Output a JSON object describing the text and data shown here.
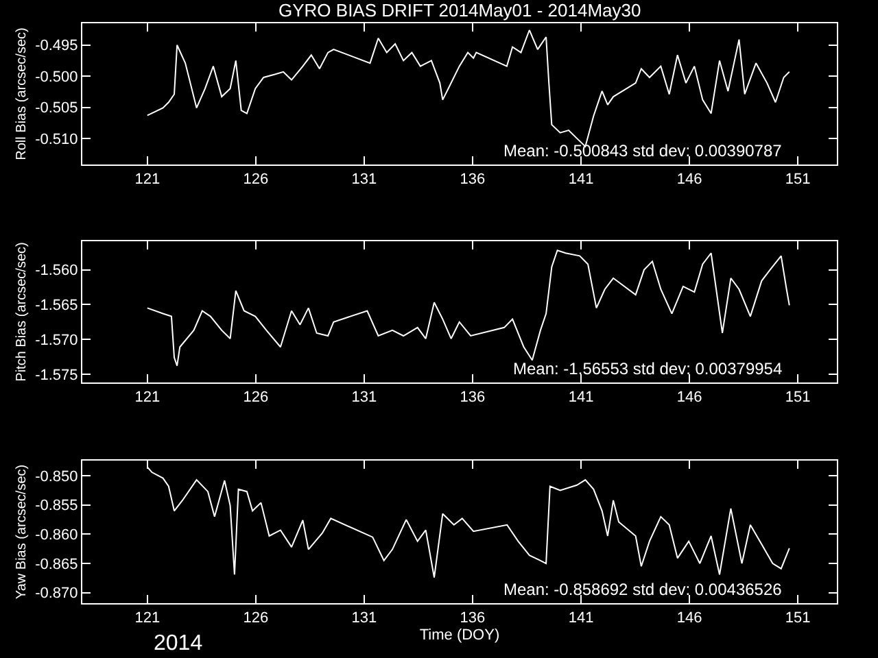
{
  "chart_data": [
    {
      "type": "line",
      "title": "GYRO BIAS DRIFT 2014May01 - 2014May30",
      "ylabel": "Roll Bias (arcsec/sec)",
      "annotations": [
        "Mean: -0.500843 std dev: 0.00390787"
      ],
      "xlim": [
        118,
        152.8
      ],
      "xticks": [
        121,
        126,
        131,
        136,
        141,
        146,
        151
      ],
      "ylim": [
        -0.5142,
        -0.4915
      ],
      "yticks": [
        -0.495,
        {
          "value": -0.5,
          "label": "-0.500"
        },
        -0.505,
        {
          "value": -0.51,
          "label": "-0.510"
        }
      ],
      "series": [
        {
          "color": "#ffffff",
          "x": [
            121.0,
            121.72,
            121.98,
            122.24,
            122.37,
            122.75,
            123.27,
            123.66,
            124.04,
            124.43,
            124.82,
            125.08,
            125.33,
            125.59,
            125.98,
            126.36,
            126.88,
            127.27,
            127.65,
            128.17,
            128.56,
            128.94,
            129.33,
            129.59,
            131.27,
            131.65,
            132.04,
            132.43,
            132.81,
            133.2,
            133.59,
            134.1,
            134.49,
            134.62,
            134.88,
            135.39,
            135.78,
            136.04,
            136.17,
            137.58,
            137.84,
            138.23,
            138.62,
            139.0,
            139.39,
            139.52,
            139.65,
            140.04,
            140.43,
            140.81,
            141.2,
            141.58,
            141.97,
            142.23,
            142.49,
            143.52,
            143.78,
            144.16,
            144.68,
            145.07,
            145.45,
            145.84,
            146.23,
            146.61,
            147.0,
            147.39,
            147.78,
            148.29,
            148.55,
            149.07,
            149.58,
            149.97,
            150.35,
            150.61
          ],
          "values": [
            -0.5063,
            -0.5051,
            -0.5042,
            -0.5029,
            -0.495,
            -0.4979,
            -0.5051,
            -0.502,
            -0.4984,
            -0.5033,
            -0.502,
            -0.4975,
            -0.5055,
            -0.506,
            -0.502,
            -0.5002,
            -0.4997,
            -0.4993,
            -0.5006,
            -0.4984,
            -0.4966,
            -0.4988,
            -0.4962,
            -0.4957,
            -0.4979,
            -0.4939,
            -0.4962,
            -0.4948,
            -0.4975,
            -0.4962,
            -0.4984,
            -0.4975,
            -0.5011,
            -0.5038,
            -0.502,
            -0.4984,
            -0.4962,
            -0.4971,
            -0.4962,
            -0.4984,
            -0.4953,
            -0.4962,
            -0.4926,
            -0.4957,
            -0.4937,
            -0.5011,
            -0.5078,
            -0.5091,
            -0.5087,
            -0.51,
            -0.5113,
            -0.5064,
            -0.5024,
            -0.5046,
            -0.5033,
            -0.5011,
            -0.4988,
            -0.5002,
            -0.4984,
            -0.5029,
            -0.4966,
            -0.5011,
            -0.4984,
            -0.5038,
            -0.506,
            -0.4975,
            -0.5024,
            -0.4941,
            -0.5029,
            -0.4979,
            -0.5011,
            -0.5042,
            -0.5002,
            -0.4993
          ]
        }
      ]
    },
    {
      "type": "line",
      "ylabel": "Pitch Bias (arcsec/sec)",
      "annotations": [
        "Mean: -1.56553 std dev: 0.00379954"
      ],
      "xlim": [
        118,
        152.8
      ],
      "xticks": [
        121,
        126,
        131,
        136,
        141,
        146,
        151
      ],
      "ylim": [
        -1.5762,
        -1.5559
      ],
      "yticks": [
        {
          "value": -1.56,
          "label": "-1.560"
        },
        -1.565,
        {
          "value": -1.57,
          "label": "-1.570"
        },
        -1.575
      ],
      "series": [
        {
          "color": "#ffffff",
          "x": [
            121.0,
            121.72,
            122.11,
            122.24,
            122.37,
            122.5,
            123.14,
            123.53,
            123.91,
            124.43,
            124.82,
            125.08,
            125.46,
            125.98,
            126.49,
            127.14,
            127.65,
            128.04,
            128.43,
            128.81,
            129.33,
            129.59,
            131.14,
            131.65,
            132.3,
            132.81,
            133.46,
            133.84,
            134.23,
            134.62,
            135.01,
            135.39,
            135.91,
            137.46,
            137.84,
            138.36,
            138.75,
            139.13,
            139.39,
            139.65,
            139.91,
            140.29,
            140.94,
            141.32,
            141.71,
            142.1,
            142.49,
            143.52,
            143.91,
            144.29,
            144.68,
            145.19,
            145.71,
            146.23,
            146.61,
            147.0,
            147.52,
            147.91,
            148.29,
            148.81,
            149.33,
            149.72,
            150.23,
            150.48,
            150.61
          ],
          "values": [
            -1.5655,
            -1.5663,
            -1.5667,
            -1.5726,
            -1.5738,
            -1.5711,
            -1.5687,
            -1.5659,
            -1.5667,
            -1.5687,
            -1.5699,
            -1.563,
            -1.5659,
            -1.5667,
            -1.5687,
            -1.5711,
            -1.5659,
            -1.5679,
            -1.5655,
            -1.5691,
            -1.5695,
            -1.5675,
            -1.5659,
            -1.5695,
            -1.5687,
            -1.5695,
            -1.5683,
            -1.5699,
            -1.5647,
            -1.5671,
            -1.5699,
            -1.5675,
            -1.5695,
            -1.5683,
            -1.5671,
            -1.5711,
            -1.573,
            -1.5687,
            -1.5663,
            -1.5596,
            -1.5572,
            -1.5576,
            -1.558,
            -1.5592,
            -1.5655,
            -1.5628,
            -1.5612,
            -1.5636,
            -1.56,
            -1.5588,
            -1.5628,
            -1.5663,
            -1.5624,
            -1.5632,
            -1.5592,
            -1.5576,
            -1.5691,
            -1.5612,
            -1.5628,
            -1.5667,
            -1.5616,
            -1.56,
            -1.558,
            -1.5628,
            -1.5651
          ]
        }
      ]
    },
    {
      "type": "line",
      "xlabel": "Time (DOY)",
      "ylabel": "Yaw Bias (arcsec/sec)",
      "annotations": [
        "Mean: -0.858692 std dev: 0.00436526",
        "2014"
      ],
      "xlim": [
        118,
        152.8
      ],
      "xticks": [
        121,
        126,
        131,
        136,
        141,
        146,
        151
      ],
      "ylim": [
        -0.8718,
        -0.8474
      ],
      "yticks": [
        {
          "value": -0.85,
          "label": "-0.850"
        },
        -0.855,
        {
          "value": -0.86,
          "label": "-0.860"
        },
        -0.865,
        {
          "value": -0.87,
          "label": "-0.870"
        }
      ],
      "series": [
        {
          "color": "#ffffff",
          "x": [
            121.0,
            121.21,
            121.72,
            121.98,
            122.24,
            122.62,
            123.27,
            123.79,
            124.1,
            124.56,
            124.82,
            125.02,
            125.2,
            125.59,
            125.85,
            126.24,
            126.62,
            127.14,
            127.65,
            128.17,
            128.43,
            129.07,
            129.46,
            131.39,
            131.91,
            132.3,
            132.94,
            133.46,
            133.84,
            134.23,
            134.62,
            135.14,
            135.52,
            136.04,
            137.59,
            138.1,
            138.62,
            139.13,
            139.39,
            139.57,
            140.04,
            140.81,
            141.2,
            141.58,
            141.97,
            142.23,
            142.49,
            142.74,
            143.52,
            143.78,
            144.16,
            144.68,
            145.07,
            145.45,
            145.97,
            146.48,
            147.0,
            147.39,
            147.91,
            148.42,
            148.81,
            149.33,
            149.84,
            150.23,
            150.61
          ],
          "values": [
            -0.8485,
            -0.8494,
            -0.8504,
            -0.8518,
            -0.856,
            -0.8542,
            -0.8507,
            -0.8527,
            -0.857,
            -0.8508,
            -0.8551,
            -0.8669,
            -0.8523,
            -0.8527,
            -0.856,
            -0.8546,
            -0.8603,
            -0.8593,
            -0.8622,
            -0.8576,
            -0.8626,
            -0.8598,
            -0.8573,
            -0.8605,
            -0.8645,
            -0.8626,
            -0.8575,
            -0.8612,
            -0.8593,
            -0.8674,
            -0.8565,
            -0.8584,
            -0.8573,
            -0.8595,
            -0.8584,
            -0.8612,
            -0.8636,
            -0.8645,
            -0.865,
            -0.8518,
            -0.8525,
            -0.8516,
            -0.8507,
            -0.8523,
            -0.856,
            -0.8603,
            -0.8542,
            -0.8579,
            -0.8603,
            -0.8655,
            -0.8612,
            -0.857,
            -0.8584,
            -0.8641,
            -0.8612,
            -0.865,
            -0.8603,
            -0.8669,
            -0.8556,
            -0.865,
            -0.8584,
            -0.8617,
            -0.865,
            -0.8659,
            -0.8624
          ]
        }
      ]
    }
  ]
}
